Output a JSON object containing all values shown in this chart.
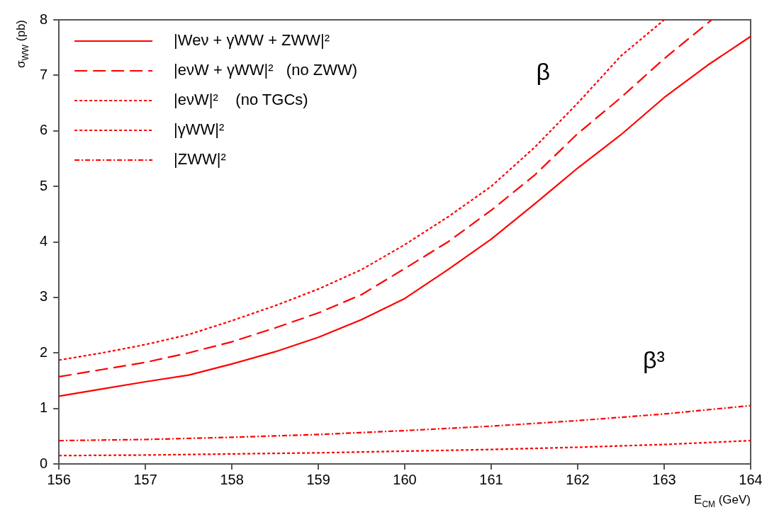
{
  "chart_data": {
    "type": "line",
    "xlabel": "E$_{CM}$ (GeV)",
    "ylabel": "σ$_{WW}$ (pb)",
    "xlim": [
      156,
      164
    ],
    "xticks": [
      156,
      157,
      158,
      159,
      160,
      161,
      162,
      163,
      164
    ],
    "ylim": [
      0,
      8
    ],
    "yticks": [
      0,
      1,
      2,
      3,
      4,
      5,
      6,
      7,
      8
    ],
    "grid": false,
    "legend": "top left",
    "marker": "none",
    "series": [
      {
        "name": "|Weν + γWW + ZWW|²",
        "color": "#ff0000",
        "line_style": "solid",
        "x": [
          156,
          156.5,
          157,
          157.5,
          158,
          158.5,
          159,
          159.5,
          160,
          160.5,
          161,
          161.5,
          162,
          162.5,
          163,
          163.5,
          164
        ],
        "values": [
          1.22,
          1.35,
          1.48,
          1.6,
          1.8,
          2.02,
          2.28,
          2.6,
          2.98,
          3.5,
          4.05,
          4.68,
          5.33,
          5.93,
          6.6,
          7.18,
          7.7
        ]
      },
      {
        "name": "|eνW + γWW|²   (no ZWW)",
        "color": "#ff0000",
        "line_style": "dashed",
        "x": [
          156,
          156.5,
          157,
          157.5,
          158,
          158.5,
          159,
          159.5,
          160,
          160.5,
          161,
          161.5,
          162,
          162.5,
          163,
          163.55
        ],
        "values": [
          1.57,
          1.7,
          1.83,
          2.0,
          2.2,
          2.45,
          2.72,
          3.05,
          3.52,
          4.0,
          4.57,
          5.2,
          5.95,
          6.6,
          7.3,
          8.0
        ]
      },
      {
        "name": "|eνW|²    (no TGCs)",
        "color": "#ff0000",
        "line_style": "dotted",
        "x": [
          156,
          156.5,
          157,
          157.5,
          158,
          158.5,
          159,
          159.5,
          160,
          160.5,
          161,
          161.5,
          162,
          162.5,
          163
        ],
        "values": [
          1.87,
          2.0,
          2.15,
          2.33,
          2.58,
          2.85,
          3.15,
          3.5,
          3.95,
          4.45,
          5.0,
          5.7,
          6.5,
          7.35,
          8.0
        ]
      },
      {
        "name": "|γWW|²",
        "color": "#ff0000",
        "line_style": "dotted",
        "x": [
          156,
          157,
          158,
          159,
          160,
          161,
          162,
          163,
          164
        ],
        "values": [
          0.15,
          0.16,
          0.18,
          0.2,
          0.23,
          0.26,
          0.3,
          0.35,
          0.42
        ]
      },
      {
        "name": "|ZWW|²",
        "color": "#ff0000",
        "line_style": "dashdot",
        "x": [
          156,
          157,
          158,
          159,
          160,
          161,
          162,
          163,
          164
        ],
        "values": [
          0.42,
          0.44,
          0.48,
          0.53,
          0.6,
          0.68,
          0.78,
          0.9,
          1.05
        ]
      }
    ],
    "annotations": [
      "β",
      "β³"
    ]
  }
}
